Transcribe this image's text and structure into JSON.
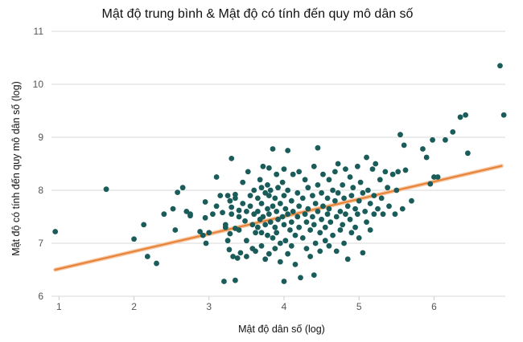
{
  "chart_data": {
    "type": "scatter",
    "title": "Mật độ trung bình & Mật độ có tính đến quy mô dân số",
    "xlabel": "Mật độ dân số (log)",
    "ylabel": "Mật độ có tính đến quy mô dân số (log)",
    "xlim": [
      0.9,
      6.95
    ],
    "ylim": [
      6,
      11
    ],
    "xticks": [
      "1",
      "2",
      "3",
      "4",
      "5",
      "6"
    ],
    "yticks": [
      "6",
      "7",
      "8",
      "9",
      "10",
      "11"
    ],
    "grid": "horizontal",
    "colors": {
      "point": "#1a5c59",
      "trend": "#e8843a",
      "grid": "#d9d9d9"
    },
    "trend_line": {
      "x": [
        0.95,
        6.9
      ],
      "y": [
        6.5,
        8.46
      ]
    },
    "points": [
      [
        0.95,
        7.22
      ],
      [
        1.63,
        8.02
      ],
      [
        2.0,
        7.08
      ],
      [
        2.13,
        7.35
      ],
      [
        2.18,
        6.75
      ],
      [
        2.3,
        6.62
      ],
      [
        2.4,
        7.55
      ],
      [
        2.52,
        7.65
      ],
      [
        2.55,
        7.25
      ],
      [
        2.58,
        7.96
      ],
      [
        2.65,
        8.05
      ],
      [
        2.7,
        7.6
      ],
      [
        2.75,
        7.55
      ],
      [
        2.75,
        7.52
      ],
      [
        2.88,
        7.22
      ],
      [
        2.92,
        7.15
      ],
      [
        2.95,
        7.78
      ],
      [
        2.95,
        7.48
      ],
      [
        2.96,
        7.0
      ],
      [
        3.0,
        7.2
      ],
      [
        3.05,
        7.55
      ],
      [
        3.1,
        8.25
      ],
      [
        3.1,
        7.7
      ],
      [
        3.15,
        7.9
      ],
      [
        3.18,
        7.58
      ],
      [
        3.2,
        6.28
      ],
      [
        3.22,
        7.35
      ],
      [
        3.22,
        7.3
      ],
      [
        3.25,
        7.9
      ],
      [
        3.25,
        7.05
      ],
      [
        3.27,
        6.88
      ],
      [
        3.28,
        7.8
      ],
      [
        3.28,
        7.18
      ],
      [
        3.3,
        8.6
      ],
      [
        3.3,
        7.68
      ],
      [
        3.3,
        7.55
      ],
      [
        3.32,
        6.75
      ],
      [
        3.35,
        7.92
      ],
      [
        3.35,
        7.85
      ],
      [
        3.35,
        7.28
      ],
      [
        3.35,
        6.3
      ],
      [
        3.38,
        6.72
      ],
      [
        3.4,
        7.62
      ],
      [
        3.4,
        7.5
      ],
      [
        3.4,
        7.25
      ],
      [
        3.42,
        6.82
      ],
      [
        3.45,
        8.15
      ],
      [
        3.45,
        7.75
      ],
      [
        3.48,
        7.42
      ],
      [
        3.5,
        7.6
      ],
      [
        3.5,
        7.05
      ],
      [
        3.5,
        6.75
      ],
      [
        3.52,
        8.35
      ],
      [
        3.55,
        7.9
      ],
      [
        3.55,
        7.7
      ],
      [
        3.58,
        7.35
      ],
      [
        3.58,
        6.9
      ],
      [
        3.6,
        8.0
      ],
      [
        3.6,
        7.55
      ],
      [
        3.62,
        7.2
      ],
      [
        3.62,
        6.85
      ],
      [
        3.65,
        7.85
      ],
      [
        3.65,
        7.6
      ],
      [
        3.65,
        7.3
      ],
      [
        3.68,
        8.2
      ],
      [
        3.68,
        7.45
      ],
      [
        3.7,
        8.05
      ],
      [
        3.7,
        7.75
      ],
      [
        3.7,
        7.2
      ],
      [
        3.7,
        6.95
      ],
      [
        3.72,
        8.45
      ],
      [
        3.72,
        7.5
      ],
      [
        3.75,
        7.95
      ],
      [
        3.75,
        7.35
      ],
      [
        3.75,
        6.7
      ],
      [
        3.78,
        8.1
      ],
      [
        3.78,
        7.65
      ],
      [
        3.78,
        7.15
      ],
      [
        3.8,
        8.42
      ],
      [
        3.8,
        7.9
      ],
      [
        3.8,
        7.55
      ],
      [
        3.8,
        6.8
      ],
      [
        3.82,
        8.0
      ],
      [
        3.82,
        7.4
      ],
      [
        3.85,
        8.78
      ],
      [
        3.85,
        7.7
      ],
      [
        3.85,
        7.1
      ],
      [
        3.88,
        7.85
      ],
      [
        3.88,
        7.3
      ],
      [
        3.88,
        6.9
      ],
      [
        3.9,
        8.3
      ],
      [
        3.9,
        7.6
      ],
      [
        3.9,
        7.2
      ],
      [
        3.92,
        8.05
      ],
      [
        3.92,
        7.45
      ],
      [
        3.95,
        7.75
      ],
      [
        3.95,
        7.0
      ],
      [
        3.95,
        6.65
      ],
      [
        3.98,
        8.15
      ],
      [
        3.98,
        7.5
      ],
      [
        4.0,
        8.4
      ],
      [
        4.0,
        7.9
      ],
      [
        4.0,
        7.35
      ],
      [
        4.0,
        6.28
      ],
      [
        4.02,
        7.65
      ],
      [
        4.02,
        7.05
      ],
      [
        4.05,
        8.75
      ],
      [
        4.05,
        8.0
      ],
      [
        4.05,
        7.55
      ],
      [
        4.05,
        6.8
      ],
      [
        4.08,
        7.25
      ],
      [
        4.1,
        7.8
      ],
      [
        4.1,
        7.4
      ],
      [
        4.1,
        6.95
      ],
      [
        4.12,
        8.3
      ],
      [
        4.12,
        7.6
      ],
      [
        4.15,
        7.15
      ],
      [
        4.15,
        6.6
      ],
      [
        4.18,
        7.95
      ],
      [
        4.18,
        7.5
      ],
      [
        4.2,
        8.35
      ],
      [
        4.2,
        7.7
      ],
      [
        4.2,
        7.3
      ],
      [
        4.22,
        6.35
      ],
      [
        4.25,
        7.85
      ],
      [
        4.25,
        7.1
      ],
      [
        4.28,
        8.2
      ],
      [
        4.28,
        7.55
      ],
      [
        4.3,
        7.4
      ],
      [
        4.3,
        6.9
      ],
      [
        4.32,
        8.05
      ],
      [
        4.32,
        7.65
      ],
      [
        4.35,
        7.25
      ],
      [
        4.35,
        6.75
      ],
      [
        4.38,
        7.9
      ],
      [
        4.38,
        7.5
      ],
      [
        4.4,
        8.45
      ],
      [
        4.4,
        7.35
      ],
      [
        4.4,
        6.4
      ],
      [
        4.42,
        7.75
      ],
      [
        4.42,
        7.0
      ],
      [
        4.45,
        8.8
      ],
      [
        4.45,
        8.1
      ],
      [
        4.45,
        7.6
      ],
      [
        4.48,
        7.2
      ],
      [
        4.48,
        6.85
      ],
      [
        4.5,
        7.95
      ],
      [
        4.5,
        7.45
      ],
      [
        4.52,
        8.3
      ],
      [
        4.52,
        7.7
      ],
      [
        4.55,
        7.3
      ],
      [
        4.55,
        7.05
      ],
      [
        4.58,
        7.85
      ],
      [
        4.58,
        7.55
      ],
      [
        4.6,
        8.2
      ],
      [
        4.6,
        7.65
      ],
      [
        4.6,
        6.95
      ],
      [
        4.62,
        7.4
      ],
      [
        4.65,
        8.0
      ],
      [
        4.65,
        7.15
      ],
      [
        4.68,
        8.35
      ],
      [
        4.68,
        7.8
      ],
      [
        4.7,
        7.5
      ],
      [
        4.7,
        6.85
      ],
      [
        4.72,
        8.5
      ],
      [
        4.72,
        7.95
      ],
      [
        4.75,
        7.6
      ],
      [
        4.75,
        7.25
      ],
      [
        4.78,
        8.1
      ],
      [
        4.78,
        7.35
      ],
      [
        4.8,
        7.85
      ],
      [
        4.8,
        7.0
      ],
      [
        4.82,
        8.4
      ],
      [
        4.82,
        7.55
      ],
      [
        4.85,
        7.7
      ],
      [
        4.85,
        6.7
      ],
      [
        4.88,
        8.25
      ],
      [
        4.88,
        7.45
      ],
      [
        4.9,
        7.9
      ],
      [
        4.9,
        7.2
      ],
      [
        4.92,
        8.05
      ],
      [
        4.95,
        7.65
      ],
      [
        4.95,
        7.3
      ],
      [
        4.98,
        8.45
      ],
      [
        4.98,
        7.55
      ],
      [
        5.0,
        7.8
      ],
      [
        5.0,
        7.1
      ],
      [
        5.02,
        8.15
      ],
      [
        5.05,
        7.95
      ],
      [
        5.05,
        6.82
      ],
      [
        5.08,
        7.6
      ],
      [
        5.1,
        8.62
      ],
      [
        5.1,
        7.4
      ],
      [
        5.12,
        8.0
      ],
      [
        5.15,
        7.75
      ],
      [
        5.15,
        7.25
      ],
      [
        5.18,
        8.4
      ],
      [
        5.2,
        7.9
      ],
      [
        5.2,
        7.55
      ],
      [
        5.22,
        8.5
      ],
      [
        5.25,
        7.65
      ],
      [
        5.28,
        8.2
      ],
      [
        5.3,
        7.85
      ],
      [
        5.32,
        7.55
      ],
      [
        5.35,
        8.35
      ],
      [
        5.38,
        8.05
      ],
      [
        5.4,
        7.7
      ],
      [
        5.45,
        8.3
      ],
      [
        5.48,
        7.55
      ],
      [
        5.5,
        8.0
      ],
      [
        5.52,
        8.35
      ],
      [
        5.55,
        9.05
      ],
      [
        5.58,
        7.65
      ],
      [
        5.6,
        8.85
      ],
      [
        5.62,
        8.38
      ],
      [
        5.7,
        7.8
      ],
      [
        5.85,
        8.78
      ],
      [
        5.9,
        8.62
      ],
      [
        5.95,
        8.12
      ],
      [
        5.98,
        8.95
      ],
      [
        6.0,
        8.25
      ],
      [
        6.05,
        8.25
      ],
      [
        6.15,
        8.95
      ],
      [
        6.25,
        9.1
      ],
      [
        6.35,
        9.38
      ],
      [
        6.42,
        9.42
      ],
      [
        6.45,
        8.7
      ],
      [
        6.88,
        10.35
      ],
      [
        6.93,
        9.42
      ]
    ]
  }
}
